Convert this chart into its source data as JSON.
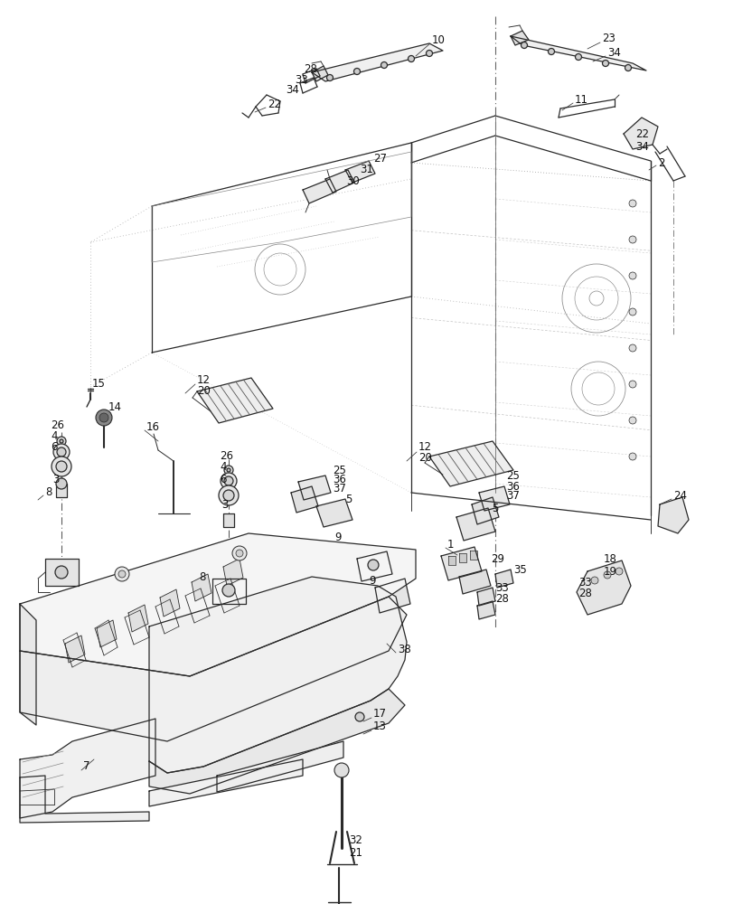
{
  "bg_color": "#ffffff",
  "line_color": "#2a2a2a",
  "label_color": "#111111",
  "font_size": 8.5,
  "dot_dash_color": "#555555",
  "dashed_color": "#666666"
}
